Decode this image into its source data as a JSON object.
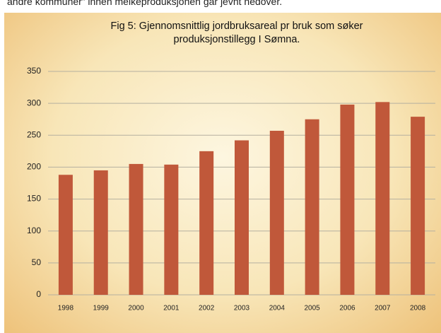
{
  "page_text": "andre kommuner” innen melkeproduksjonen går jevnt nedover.",
  "chart_data": {
    "type": "bar",
    "title": "Fig 5: Gjennomsnittlig jordbruksareal pr bruk som søker produksjonstillegg I Sømna.",
    "categories": [
      "1998",
      "1999",
      "2000",
      "2001",
      "2002",
      "2003",
      "2004",
      "2005",
      "2006",
      "2007",
      "2008"
    ],
    "values": [
      188,
      195,
      205,
      204,
      225,
      242,
      257,
      275,
      298,
      302,
      279
    ],
    "color": "#c0583a",
    "ylim": [
      0,
      350
    ],
    "yticks": [
      0,
      50,
      100,
      150,
      200,
      250,
      300,
      350
    ],
    "grid": true
  }
}
